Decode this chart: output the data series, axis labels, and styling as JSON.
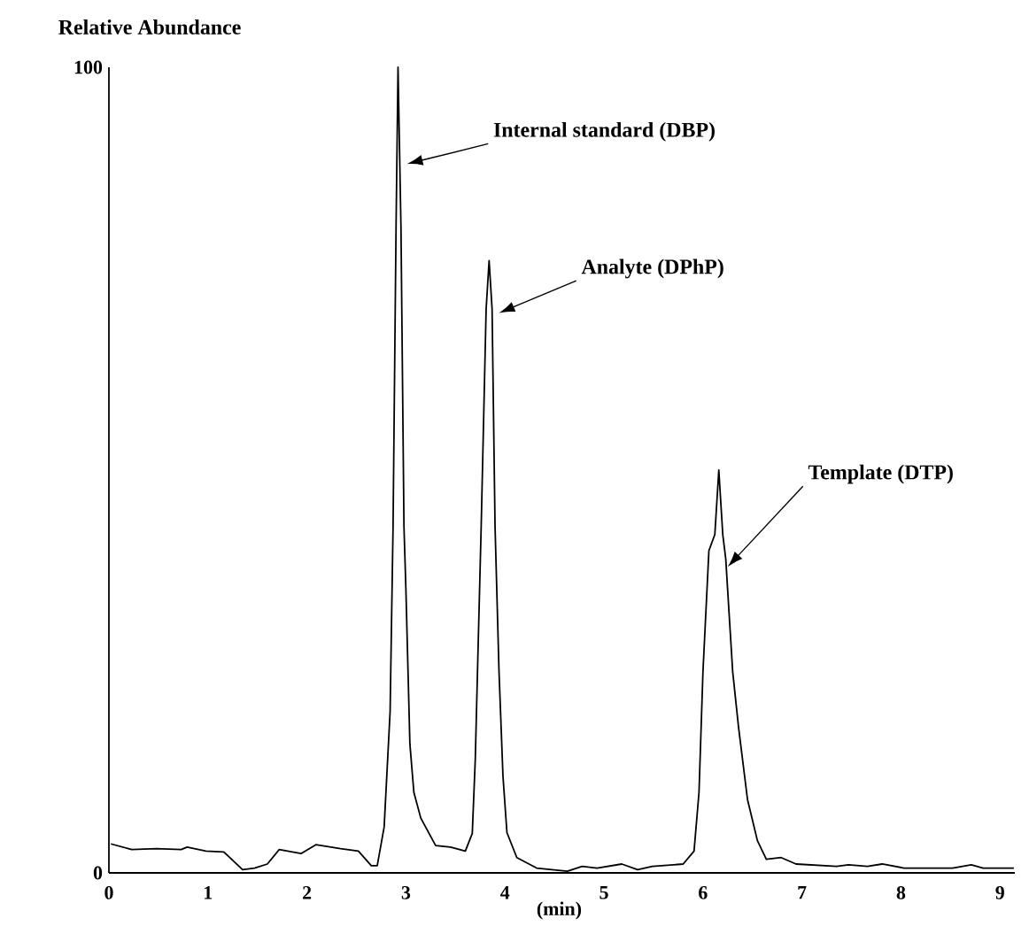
{
  "chart_data": {
    "type": "line",
    "ylabel": "Relative Abundance",
    "xlabel": "(min)",
    "xlim": [
      0,
      9.15
    ],
    "ylim": [
      0,
      100
    ],
    "xticks": [
      0,
      1,
      2,
      3,
      4,
      5,
      6,
      7,
      8,
      9
    ],
    "yticks": [
      0,
      100
    ],
    "annotations": [
      {
        "text": "Internal standard (DBP)",
        "x": 3.01,
        "y": 88
      },
      {
        "text": "Analyte (DPhP)",
        "x": 3.94,
        "y": 69.5
      },
      {
        "text": "Template (DTP)",
        "x": 6.25,
        "y": 38
      }
    ],
    "series": [
      {
        "color": "#000000",
        "x": [
          0.02,
          0.23,
          0.48,
          0.73,
          0.79,
          0.98,
          1.16,
          1.35,
          1.47,
          1.6,
          1.72,
          1.94,
          2.09,
          2.34,
          2.52,
          2.65,
          2.71,
          2.78,
          2.84,
          2.87,
          2.9,
          2.92,
          2.95,
          2.98,
          3.0,
          3.04,
          3.08,
          3.15,
          3.3,
          3.45,
          3.6,
          3.67,
          3.7,
          3.76,
          3.81,
          3.84,
          3.87,
          3.9,
          3.94,
          3.98,
          4.02,
          4.12,
          4.32,
          4.63,
          4.78,
          4.93,
          5.18,
          5.34,
          5.49,
          5.8,
          5.91,
          5.96,
          6.0,
          6.06,
          6.12,
          6.16,
          6.2,
          6.23,
          6.3,
          6.36,
          6.45,
          6.55,
          6.64,
          6.79,
          6.94,
          7.35,
          7.47,
          7.66,
          7.81,
          8.03,
          8.52,
          8.71,
          8.83,
          9.14
        ],
        "values": [
          3.6,
          2.9,
          3.0,
          2.9,
          3.2,
          2.7,
          2.6,
          0.4,
          0.6,
          1.1,
          2.9,
          2.4,
          3.5,
          3.0,
          2.7,
          0.9,
          0.9,
          5.7,
          20,
          43,
          80,
          100,
          80,
          43,
          35,
          16,
          10,
          6.8,
          3.4,
          3.2,
          2.7,
          4.9,
          14,
          43,
          70,
          76,
          70,
          43,
          25,
          12,
          5,
          1.9,
          0.6,
          0.2,
          0.8,
          0.6,
          1.1,
          0.4,
          0.8,
          1.1,
          2.7,
          10,
          25,
          40,
          42,
          50,
          42,
          39,
          25,
          18,
          9.1,
          4,
          1.7,
          1.9,
          1.1,
          0.8,
          1.0,
          0.8,
          1.1,
          0.6,
          0.6,
          1.0,
          0.6,
          0.6
        ]
      }
    ]
  }
}
